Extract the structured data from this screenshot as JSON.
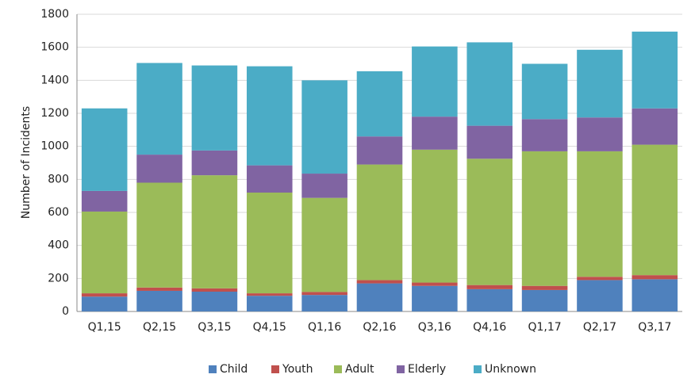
{
  "chart_data": {
    "type": "stacked_bar",
    "y_label": "Number of Incidents",
    "categories": [
      "Q1,15",
      "Q2,15",
      "Q3,15",
      "Q4,15",
      "Q1,16",
      "Q2,16",
      "Q3,16",
      "Q4,16",
      "Q1,17",
      "Q2,17",
      "Q3,17"
    ],
    "series": [
      {
        "name": "Child",
        "color": "#4f81bd",
        "values": [
          90,
          125,
          120,
          95,
          100,
          170,
          155,
          135,
          130,
          190,
          195
        ]
      },
      {
        "name": "Youth",
        "color": "#c0504d",
        "values": [
          20,
          20,
          20,
          15,
          18,
          20,
          20,
          25,
          25,
          20,
          25
        ]
      },
      {
        "name": "Adult",
        "color": "#9bbb59",
        "values": [
          495,
          635,
          685,
          610,
          570,
          700,
          805,
          765,
          815,
          760,
          790
        ]
      },
      {
        "name": "Elderly",
        "color": "#8064a2",
        "values": [
          125,
          170,
          150,
          165,
          147,
          170,
          200,
          200,
          195,
          205,
          220
        ]
      },
      {
        "name": "Unknown",
        "color": "#4bacc6",
        "values": [
          500,
          555,
          515,
          600,
          565,
          395,
          425,
          505,
          335,
          410,
          465
        ]
      }
    ],
    "ylim": [
      0,
      1800
    ],
    "yticks": [
      0,
      200,
      400,
      600,
      800,
      1000,
      1200,
      1400,
      1600,
      1800
    ],
    "grid": true,
    "legend": "bottom"
  }
}
